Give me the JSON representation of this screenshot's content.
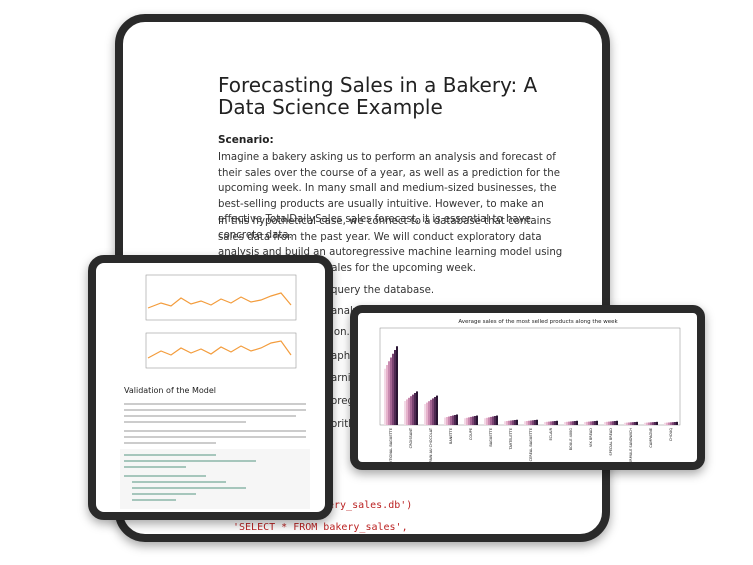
{
  "main_tablet": {
    "title": "Forecasting Sales in a Bakery: A Data Science Example",
    "scenario_heading": "Scenario:",
    "paragraphs": [
      "Imagine a bakery asking us to perform an analysis and forecast of their sales over the course of a year, as well as a prediction for the upcoming week. In many small and medium-sized businesses, the best-selling products are usually intuitive. However, to make an effective TotalDailySales sales forecast, it is essential to have concrete data.",
      "In this hypothetical case, we connect to a database that contains sales data from the past year. We will conduct exploratory data analysis and build an autoregressive machine learning model using skforecast to predict sales for the upcoming week."
    ],
    "partial_lines": [
      "query the database.",
      "analy",
      "ion.",
      "aphs a",
      "arnin",
      "oreg",
      "orith"
    ],
    "code_lines": [
      "ery_sales.db')",
      "'SELECT * FROM bakery_sales',",
      "conn"
    ]
  },
  "left_tablet": {
    "heading": "Validation of the Model"
  },
  "right_tablet": {
    "chart_title": "Average sales of the most selled products along the week",
    "categories": [
      "TRADITIONAL BAGUETTE",
      "CROISSANT",
      "PAIN AU CHOCOLAT",
      "BANETTE",
      "COUPE",
      "BAGUETTE",
      "TARTELETTE",
      "CEREAL BAGUETTE",
      "ECLAIR",
      "BOULE 400G",
      "VIK BREAD",
      "SPECIAL BREAD",
      "FORMULE SANDWICH",
      "CAMPAGNE",
      "CHOUQ"
    ]
  }
}
